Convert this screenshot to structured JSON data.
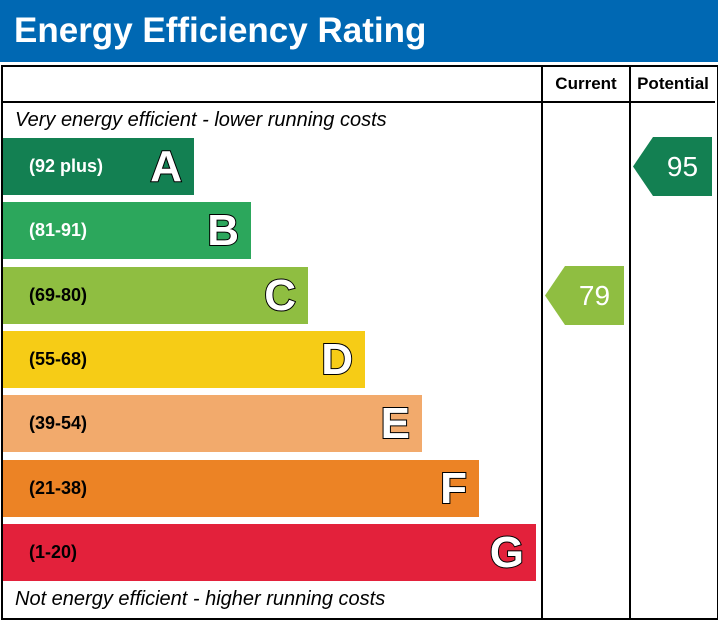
{
  "title": "Energy Efficiency Rating",
  "columns": {
    "current": "Current",
    "potential": "Potential"
  },
  "top_note": "Very energy efficient - lower running costs",
  "bottom_note": "Not energy efficient - higher running costs",
  "chart_data": {
    "type": "bar",
    "title": "Energy Efficiency Rating",
    "categories": [
      "A",
      "B",
      "C",
      "D",
      "E",
      "F",
      "G"
    ],
    "bands": [
      {
        "letter": "A",
        "range": "(92 plus)",
        "color": "#138052",
        "text_color": "#ffffff"
      },
      {
        "letter": "B",
        "range": "(81-91)",
        "color": "#2ca75c",
        "text_color": "#ffffff"
      },
      {
        "letter": "C",
        "range": "(69-80)",
        "color": "#8fbe41",
        "text_color": "#000000"
      },
      {
        "letter": "D",
        "range": "(55-68)",
        "color": "#f6cc16",
        "text_color": "#000000"
      },
      {
        "letter": "E",
        "range": "(39-54)",
        "color": "#f2aa6c",
        "text_color": "#000000"
      },
      {
        "letter": "F",
        "range": "(21-38)",
        "color": "#ec8325",
        "text_color": "#000000"
      },
      {
        "letter": "G",
        "range": "(1-20)",
        "color": "#e3213b",
        "text_color": "#000000"
      }
    ],
    "current": {
      "value": "79",
      "band": "C",
      "color": "#8fbe41"
    },
    "potential": {
      "value": "95",
      "band": "A",
      "color": "#138052"
    }
  }
}
